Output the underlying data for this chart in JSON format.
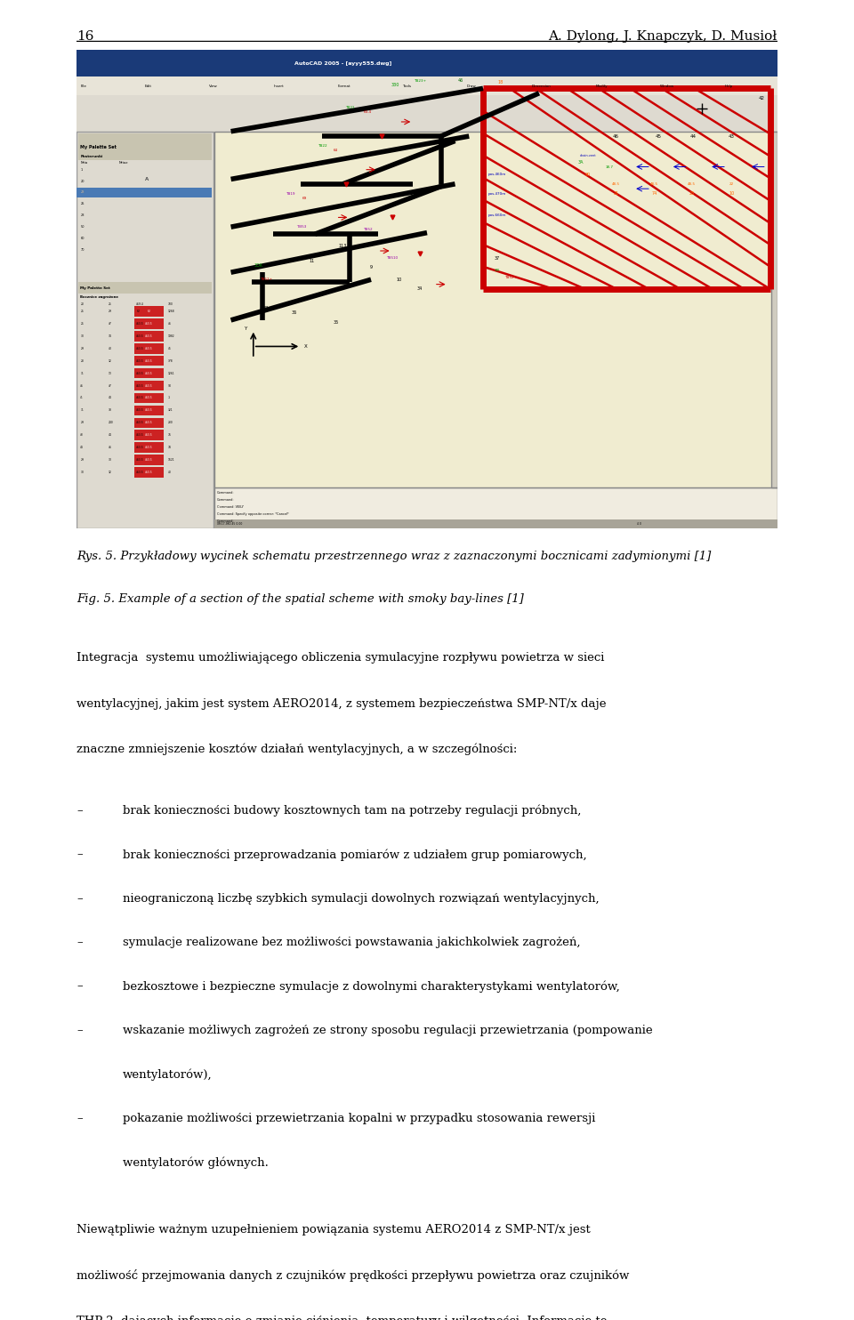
{
  "page_number": "16",
  "authors": "A. Dylong, J. Knapczyk, D. Musioł",
  "fig_caption_pl": "Rys. 5. Przykładowy wycinek schematu przestrzennego wraz z zaznaczonymi bocznicami zadymionymi [1]",
  "fig_caption_en": "Fig. 5. Example of a section of the spatial scheme with smoky bay-lines [1]",
  "body_text": "Integracja  systemu umożliwiającego obliczenia symulacyjne rozpływu powietrza w sieci wentylacyjnej, jakim jest system AERO2014, z systemem bezpieczeństwa SMP-NT/x daje znaczne zmniejszenie kosztów działań wentylacyjnych, a w szczególności:",
  "bullet_items": [
    "brak konieczności budowy kosztownych tam na potrzeby regulacji próbnych,",
    "brak konieczności przeprowadzania pomiarów z udziałem grup pomiarowych,",
    "nieograniczoną liczbę szybkich symulacji dowolnych rozwiązań wentylacyjnych,",
    "symulacje realizowane bez możliwości powstawania jakichkolwiek zagrożeń,",
    "bezkosztowe i bezpieczne symulacje z dowolnymi charakterystykami wentylatorów,",
    "wskazanie możliwych zagrożeń ze strony sposobu regulacji przewietrzania (pompowanie wentylatorów),",
    "pokazanie możliwości przewietrzania kopalni w przypadku stosowania rewersji wentylatorów głównych."
  ],
  "paragraph2": "Niewątpliwie ważnym uzupełnieniem powiązania systemu AERO2014 z SMP-NT/x jest możliwość przejmowania danych z czujników prędkości przepływu powietrza oraz czujników THP-2, dających informacje o zmianie ciśnienia, temperatury i wilgotności. Informacje te pozwalają na natychmiastowe wyznaczenie dynamicznych zmian oporu aerodynamicznego bocznic, a tym samym na ponowne rozliczenie i zbilansowanie rozpływu powietrza kopalni.",
  "bg_color": "#ffffff",
  "text_color": "#000000",
  "ml": 0.09,
  "mr": 0.91,
  "font_size_body": 10.5,
  "font_size_header": 11.0,
  "font_size_caption": 10.5
}
